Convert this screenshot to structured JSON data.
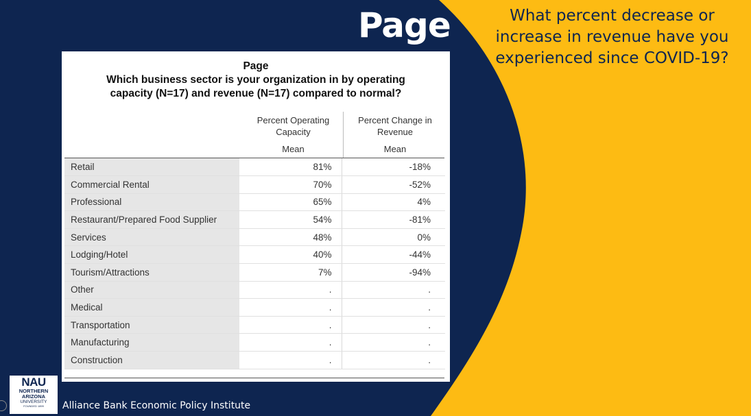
{
  "slide": {
    "title": "Page",
    "question": "What percent decrease or increase in revenue have you experienced since COVID-19?",
    "footer": "Alliance Bank Economic Policy Institute",
    "colors": {
      "navy": "#0e2550",
      "gold": "#fdbb13"
    }
  },
  "logo": {
    "line1": "NAU",
    "line2": "NORTHERN",
    "line3": "ARIZONA",
    "line4": "UNIVERSITY",
    "line5": "FOUNDED 1899"
  },
  "table": {
    "title": "Page",
    "subtitle_line1": "Which business sector is your organization in by operating",
    "subtitle_line2": "capacity (N=17) and revenue (N=17) compared to normal?",
    "col1_header_line1": "Percent Operating",
    "col1_header_line2": "Capacity",
    "col2_header_line1": "Percent Change in",
    "col2_header_line2": "Revenue",
    "stat_label": "Mean",
    "rows": [
      {
        "sector": "Retail",
        "capacity": "81%",
        "revenue": "-18%"
      },
      {
        "sector": "Commercial Rental",
        "capacity": "70%",
        "revenue": "-52%"
      },
      {
        "sector": "Professional",
        "capacity": "65%",
        "revenue": "4%"
      },
      {
        "sector": "Restaurant/Prepared Food Supplier",
        "capacity": "54%",
        "revenue": "-81%"
      },
      {
        "sector": "Services",
        "capacity": "48%",
        "revenue": "0%"
      },
      {
        "sector": "Lodging/Hotel",
        "capacity": "40%",
        "revenue": "-44%"
      },
      {
        "sector": "Tourism/Attractions",
        "capacity": "7%",
        "revenue": "-94%"
      },
      {
        "sector": "Other",
        "capacity": ".",
        "revenue": "."
      },
      {
        "sector": "Medical",
        "capacity": ".",
        "revenue": "."
      },
      {
        "sector": "Transportation",
        "capacity": ".",
        "revenue": "."
      },
      {
        "sector": "Manufacturing",
        "capacity": ".",
        "revenue": "."
      },
      {
        "sector": "Construction",
        "capacity": ".",
        "revenue": "."
      }
    ]
  }
}
